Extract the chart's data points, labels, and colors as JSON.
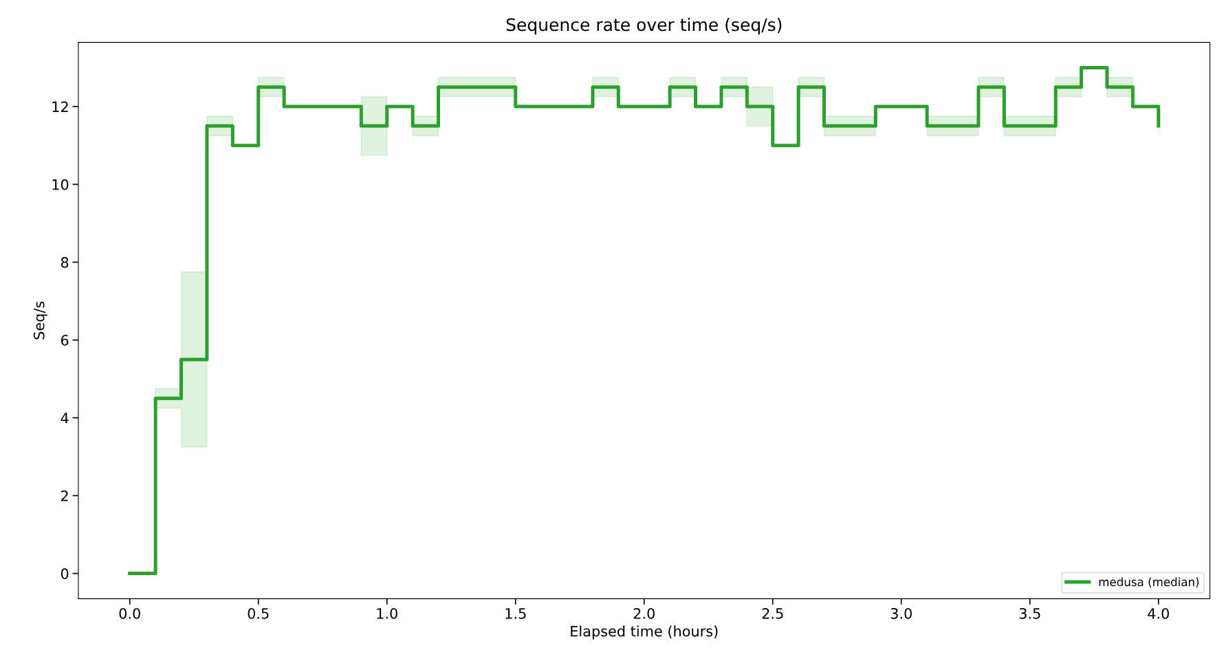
{
  "chart_data": {
    "type": "step",
    "title": "Sequence rate over time (seq/s)",
    "xlabel": "Elapsed time (hours)",
    "ylabel": "Seq/s",
    "x": [
      0.0,
      0.1,
      0.2,
      0.3,
      0.4,
      0.5,
      0.6,
      0.7,
      0.8,
      0.9,
      1.0,
      1.1,
      1.2,
      1.3,
      1.4,
      1.5,
      1.6,
      1.7,
      1.8,
      1.9,
      2.0,
      2.1,
      2.2,
      2.3,
      2.4,
      2.5,
      2.6,
      2.7,
      2.8,
      2.9,
      3.0,
      3.1,
      3.2,
      3.3,
      3.4,
      3.5,
      3.6,
      3.7,
      3.8,
      3.9,
      4.0
    ],
    "series": [
      {
        "name": "medusa (median)",
        "color": "#2ca02c",
        "values": [
          0,
          4.5,
          5.5,
          11.5,
          11,
          12.5,
          12,
          12,
          12,
          11.5,
          12,
          11.5,
          12.5,
          12.5,
          12.5,
          12,
          12,
          12,
          12.5,
          12,
          12,
          12.5,
          12,
          12.5,
          12,
          11,
          12.5,
          11.5,
          11.5,
          12,
          12,
          11.5,
          11.5,
          12.5,
          11.5,
          11.5,
          12.5,
          13,
          12.5,
          12,
          11.5
        ],
        "lower": [
          0,
          4.25,
          3.25,
          11.25,
          11,
          12.25,
          12,
          12,
          12,
          10.75,
          12,
          11.25,
          12.25,
          12.25,
          12.25,
          12,
          12,
          12,
          12.25,
          12,
          12,
          12.25,
          12,
          12.25,
          11.5,
          11,
          12.25,
          11.25,
          11.25,
          12,
          12,
          11.25,
          11.25,
          12.25,
          11.25,
          11.25,
          12.25,
          13,
          12.25,
          12,
          11.25
        ],
        "upper": [
          0,
          4.75,
          7.75,
          11.75,
          11,
          12.75,
          12,
          12,
          12,
          12.25,
          12,
          11.75,
          12.75,
          12.75,
          12.75,
          12,
          12,
          12,
          12.75,
          12,
          12,
          12.75,
          12,
          12.75,
          12.5,
          11,
          12.75,
          11.75,
          11.75,
          12,
          12,
          11.75,
          11.75,
          12.75,
          11.75,
          11.75,
          12.75,
          13,
          12.75,
          12,
          11.75
        ]
      }
    ],
    "xlim": [
      -0.2,
      4.2
    ],
    "xticks": [
      {
        "value": 0,
        "label": "0.0"
      },
      {
        "value": 0.5,
        "label": "0.5"
      },
      {
        "value": 1,
        "label": "1.0"
      },
      {
        "value": 1.5,
        "label": "1.5"
      },
      {
        "value": 2,
        "label": "2.0"
      },
      {
        "value": 2.5,
        "label": "2.5"
      },
      {
        "value": 3,
        "label": "3.0"
      },
      {
        "value": 3.5,
        "label": "3.5"
      },
      {
        "value": 4,
        "label": "4.0"
      }
    ],
    "ylim": [
      -0.65,
      13.65
    ],
    "yticks": [
      0,
      2,
      4,
      6,
      8,
      10,
      12
    ],
    "legend": "lower right",
    "grid": false,
    "line_style": "solid"
  }
}
